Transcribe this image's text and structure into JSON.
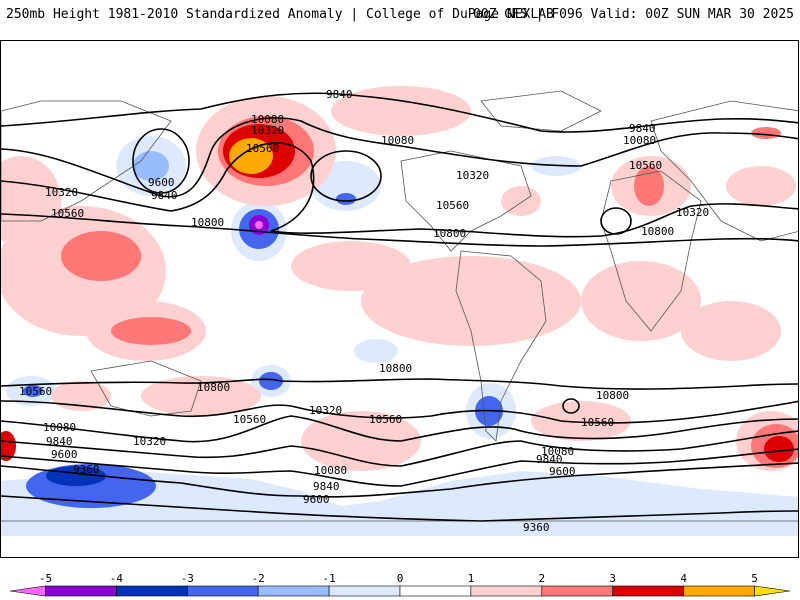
{
  "header": {
    "left": "250mb Height 1981-2010 Standardized Anomaly | College of DuPage NEXLAB",
    "right": "00Z GFS | F096 Valid: 00Z SUN MAR 30 2025"
  },
  "colorbar": {
    "ticks": [
      {
        "label": "-5",
        "value": -5
      },
      {
        "label": "-4",
        "value": -4
      },
      {
        "label": "-3",
        "value": -3
      },
      {
        "label": "-2",
        "value": -2
      },
      {
        "label": "-1",
        "value": -1
      },
      {
        "label": "0",
        "value": 0
      },
      {
        "label": "1",
        "value": 1
      },
      {
        "label": "2",
        "value": 2
      },
      {
        "label": "3",
        "value": 3
      },
      {
        "label": "4",
        "value": 4
      },
      {
        "label": "5",
        "value": 5
      }
    ],
    "bins": [
      {
        "from": -5.5,
        "to": -5,
        "color": "#ff66ff"
      },
      {
        "from": -5,
        "to": -4,
        "color": "#8a00d4"
      },
      {
        "from": -4,
        "to": -3,
        "color": "#0033bb"
      },
      {
        "from": -3,
        "to": -2,
        "color": "#4466ee"
      },
      {
        "from": -2,
        "to": -1,
        "color": "#99bbff"
      },
      {
        "from": -1,
        "to": 0,
        "color": "#dde9ff"
      },
      {
        "from": 0,
        "to": 1,
        "color": "#ffffff"
      },
      {
        "from": 1,
        "to": 2,
        "color": "#ffd0d0"
      },
      {
        "from": 2,
        "to": 3,
        "color": "#ff7777"
      },
      {
        "from": 3,
        "to": 4,
        "color": "#dd0000"
      },
      {
        "from": 4,
        "to": 5,
        "color": "#ffaa00"
      },
      {
        "from": 5,
        "to": 5.5,
        "color": "#ffdd00"
      }
    ]
  },
  "map": {
    "contour_labels": [
      "9840",
      "10080",
      "10320",
      "10560",
      "9600",
      "9840",
      "10320",
      "10560",
      "10800",
      "10080",
      "10320",
      "10560",
      "10560",
      "10800",
      "9840",
      "10080",
      "10560",
      "10320",
      "10800",
      "10560",
      "10800",
      "10080",
      "9840",
      "9600",
      "9360",
      "10320",
      "10560",
      "10080",
      "9840",
      "9600",
      "10800",
      "10320",
      "10560",
      "10080",
      "9840",
      "9600",
      "10800",
      "10560",
      "9360"
    ]
  }
}
